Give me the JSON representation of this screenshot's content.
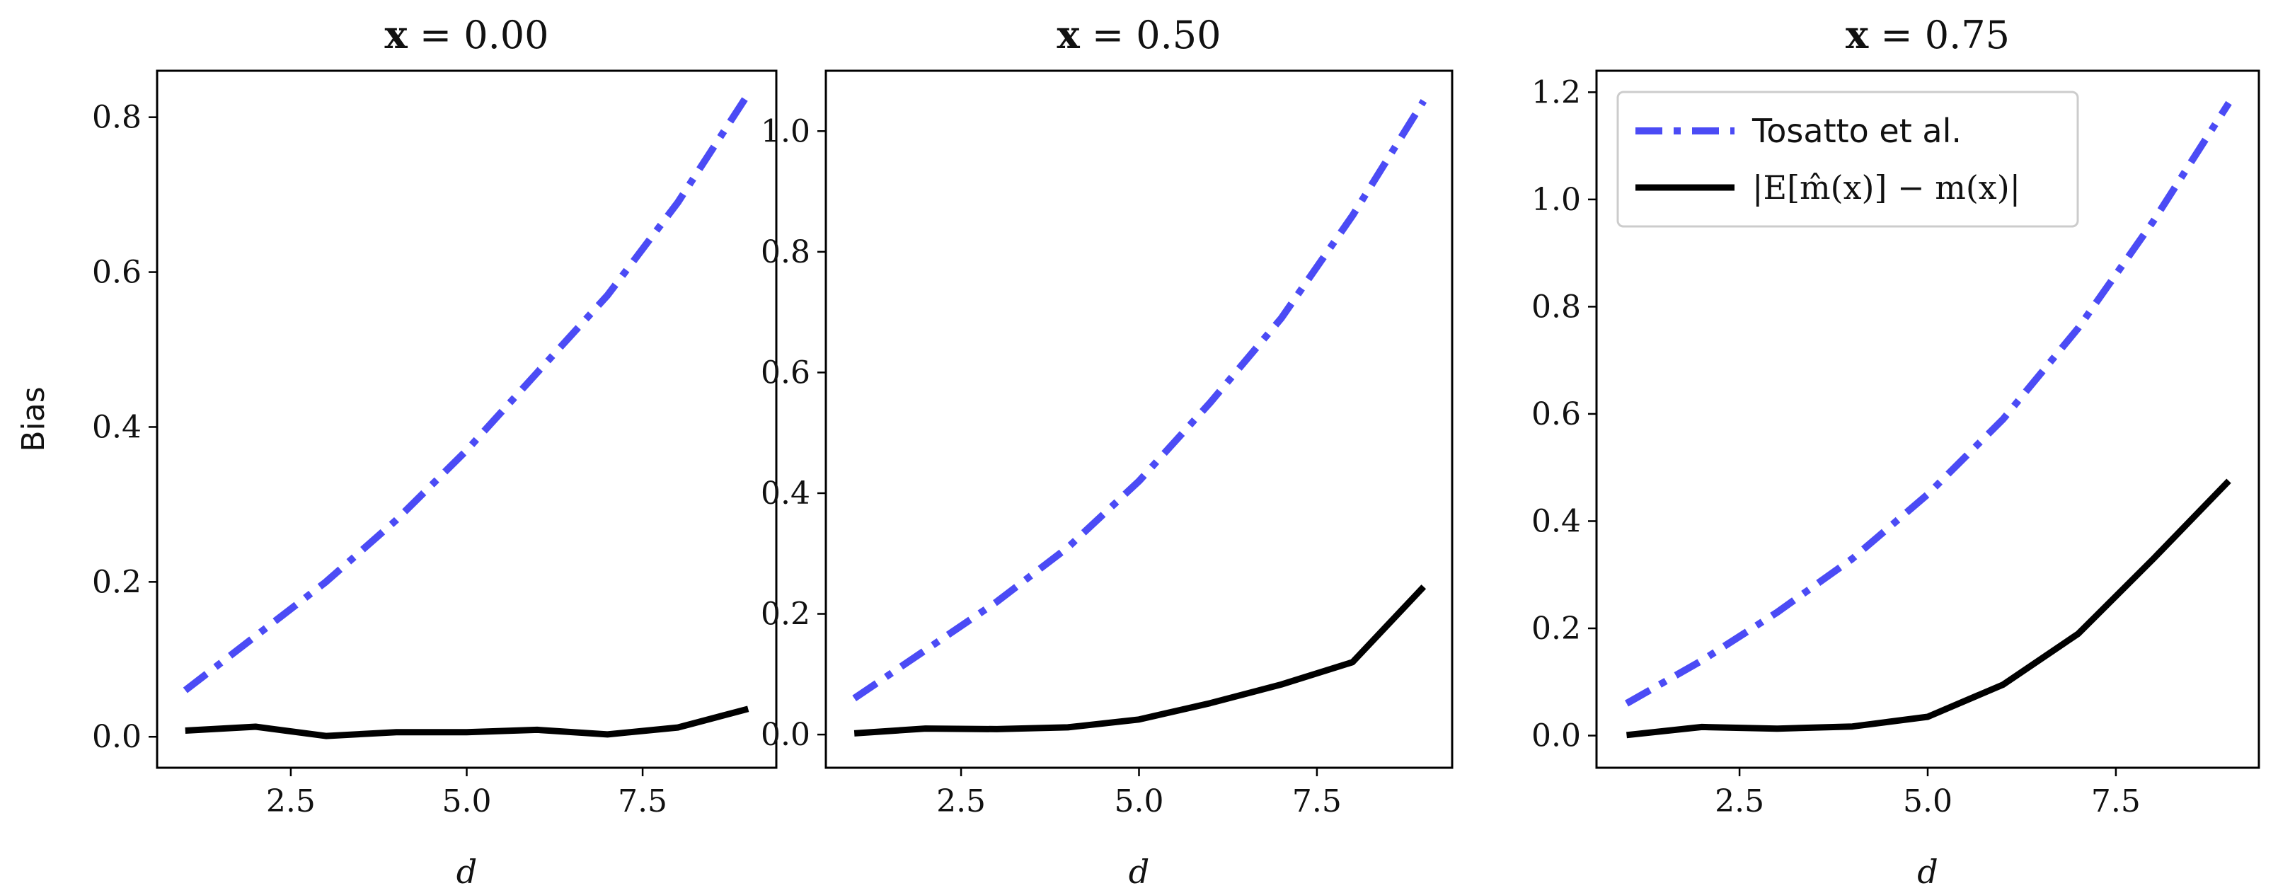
{
  "chart_data": [
    {
      "type": "line",
      "title": "x = 0.00",
      "xlabel": "d",
      "ylabel": "Bias",
      "xlim": [
        0.6,
        9.4
      ],
      "ylim": [
        -0.04,
        0.86
      ],
      "xticks": [
        2.5,
        5.0,
        7.5
      ],
      "xtick_labels": [
        "2.5",
        "5.0",
        "7.5"
      ],
      "yticks": [
        0.0,
        0.2,
        0.4,
        0.6,
        0.8
      ],
      "ytick_labels": [
        "0.0",
        "0.2",
        "0.4",
        "0.6",
        "0.8"
      ],
      "x": [
        1,
        2,
        3,
        4,
        5,
        6,
        7,
        8,
        9
      ],
      "series": [
        {
          "name": "Tosatto et al.",
          "style": "dashdot",
          "color": "#4B4BF5",
          "values": [
            0.06,
            0.13,
            0.2,
            0.28,
            0.37,
            0.47,
            0.57,
            0.69,
            0.83
          ]
        },
        {
          "name": "|E[m̂(x)] − m(x)|",
          "style": "solid",
          "color": "#000000",
          "values": [
            0.008,
            0.013,
            0.001,
            0.006,
            0.006,
            0.009,
            0.003,
            0.012,
            0.036
          ]
        }
      ],
      "legend": null
    },
    {
      "type": "line",
      "title": "x = 0.50",
      "xlabel": "d",
      "ylabel": "",
      "xlim": [
        0.6,
        9.4
      ],
      "ylim": [
        -0.055,
        1.1
      ],
      "xticks": [
        2.5,
        5.0,
        7.5
      ],
      "xtick_labels": [
        "2.5",
        "5.0",
        "7.5"
      ],
      "yticks": [
        0.0,
        0.2,
        0.4,
        0.6,
        0.8,
        1.0
      ],
      "ytick_labels": [
        "0.0",
        "0.2",
        "0.4",
        "0.6",
        "0.8",
        "1.0"
      ],
      "x": [
        1,
        2,
        3,
        4,
        5,
        6,
        7,
        8,
        9
      ],
      "series": [
        {
          "name": "Tosatto et al.",
          "style": "dashdot",
          "color": "#4B4BF5",
          "values": [
            0.06,
            0.14,
            0.22,
            0.31,
            0.42,
            0.55,
            0.69,
            0.86,
            1.05
          ]
        },
        {
          "name": "|E[m̂(x)] − m(x)|",
          "style": "solid",
          "color": "#000000",
          "values": [
            0.002,
            0.01,
            0.009,
            0.012,
            0.025,
            0.052,
            0.083,
            0.12,
            0.245
          ]
        }
      ],
      "legend": null
    },
    {
      "type": "line",
      "title": "x = 0.75",
      "xlabel": "d",
      "ylabel": "",
      "xlim": [
        0.6,
        9.4
      ],
      "ylim": [
        -0.06,
        1.24
      ],
      "xticks": [
        2.5,
        5.0,
        7.5
      ],
      "xtick_labels": [
        "2.5",
        "5.0",
        "7.5"
      ],
      "yticks": [
        0.0,
        0.2,
        0.4,
        0.6,
        0.8,
        1.0,
        1.2
      ],
      "ytick_labels": [
        "0.0",
        "0.2",
        "0.4",
        "0.6",
        "0.8",
        "1.0",
        "1.2"
      ],
      "x": [
        1,
        2,
        3,
        4,
        5,
        6,
        7,
        8,
        9
      ],
      "series": [
        {
          "name": "Tosatto et al.",
          "style": "dashdot",
          "color": "#4B4BF5",
          "values": [
            0.06,
            0.14,
            0.23,
            0.33,
            0.45,
            0.59,
            0.76,
            0.96,
            1.18
          ]
        },
        {
          "name": "|E[m̂(x)] − m(x)|",
          "style": "solid",
          "color": "#000000",
          "values": [
            0.001,
            0.016,
            0.013,
            0.017,
            0.035,
            0.095,
            0.19,
            0.33,
            0.475
          ]
        }
      ],
      "legend": "top-left"
    }
  ]
}
